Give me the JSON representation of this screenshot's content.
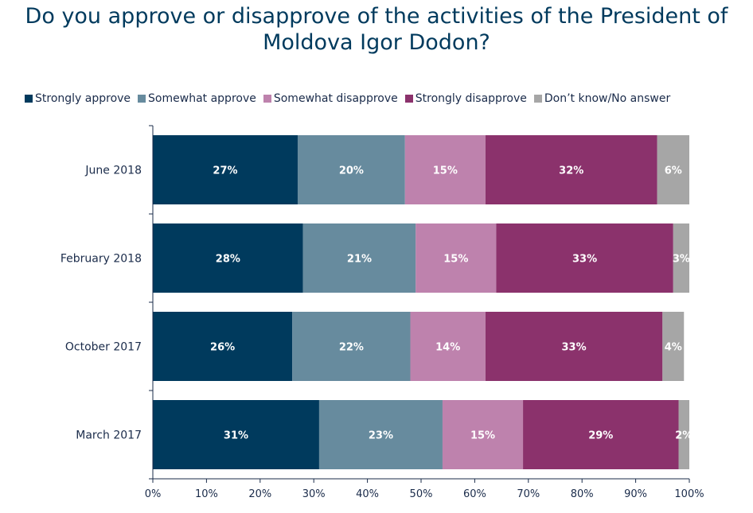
{
  "title_lines": [
    "Do you approve or disapprove of the activities of the President of",
    "Moldova Igor Dodon?"
  ],
  "colors": {
    "strongly_approve": "#003a5d",
    "somewhat_approve": "#678b9e",
    "somewhat_disapprove": "#be82ad",
    "strongly_disapprove": "#8b326c",
    "dont_know": "#a6a6a6",
    "title": "#003a5d",
    "axis": "#1a2b4a"
  },
  "chart_data": {
    "type": "bar",
    "orientation": "horizontal",
    "stacked": true,
    "title": "Do you approve or disapprove of the activities of the President of Moldova Igor Dodon?",
    "categories": [
      "June 2018",
      "February 2018",
      "October 2017",
      "March 2017"
    ],
    "series": [
      {
        "name": "Strongly approve",
        "color_key": "strongly_approve",
        "values": [
          27,
          28,
          26,
          31
        ],
        "labels": [
          "27%",
          "28%",
          "26%",
          "31%"
        ]
      },
      {
        "name": "Somewhat approve",
        "color_key": "somewhat_approve",
        "values": [
          20,
          21,
          22,
          23
        ],
        "labels": [
          "20%",
          "21%",
          "22%",
          "23%"
        ]
      },
      {
        "name": "Somewhat disapprove",
        "color_key": "somewhat_disapprove",
        "values": [
          15,
          15,
          14,
          15
        ],
        "labels": [
          "15%",
          "15%",
          "14%",
          "15%"
        ]
      },
      {
        "name": "Strongly disapprove",
        "color_key": "strongly_disapprove",
        "values": [
          32,
          33,
          33,
          29
        ],
        "labels": [
          "32%",
          "33%",
          "33%",
          "29%"
        ]
      },
      {
        "name": "Don’t know/No answer",
        "color_key": "dont_know",
        "values": [
          6,
          3,
          4,
          2
        ],
        "labels": [
          "6%",
          "3%",
          "4%",
          "2%"
        ]
      }
    ],
    "xlim": [
      0,
      100
    ],
    "x_ticks": [
      "0%",
      "10%",
      "20%",
      "30%",
      "40%",
      "50%",
      "60%",
      "70%",
      "80%",
      "90%",
      "100%"
    ],
    "grid": false,
    "legend_position": "top"
  }
}
